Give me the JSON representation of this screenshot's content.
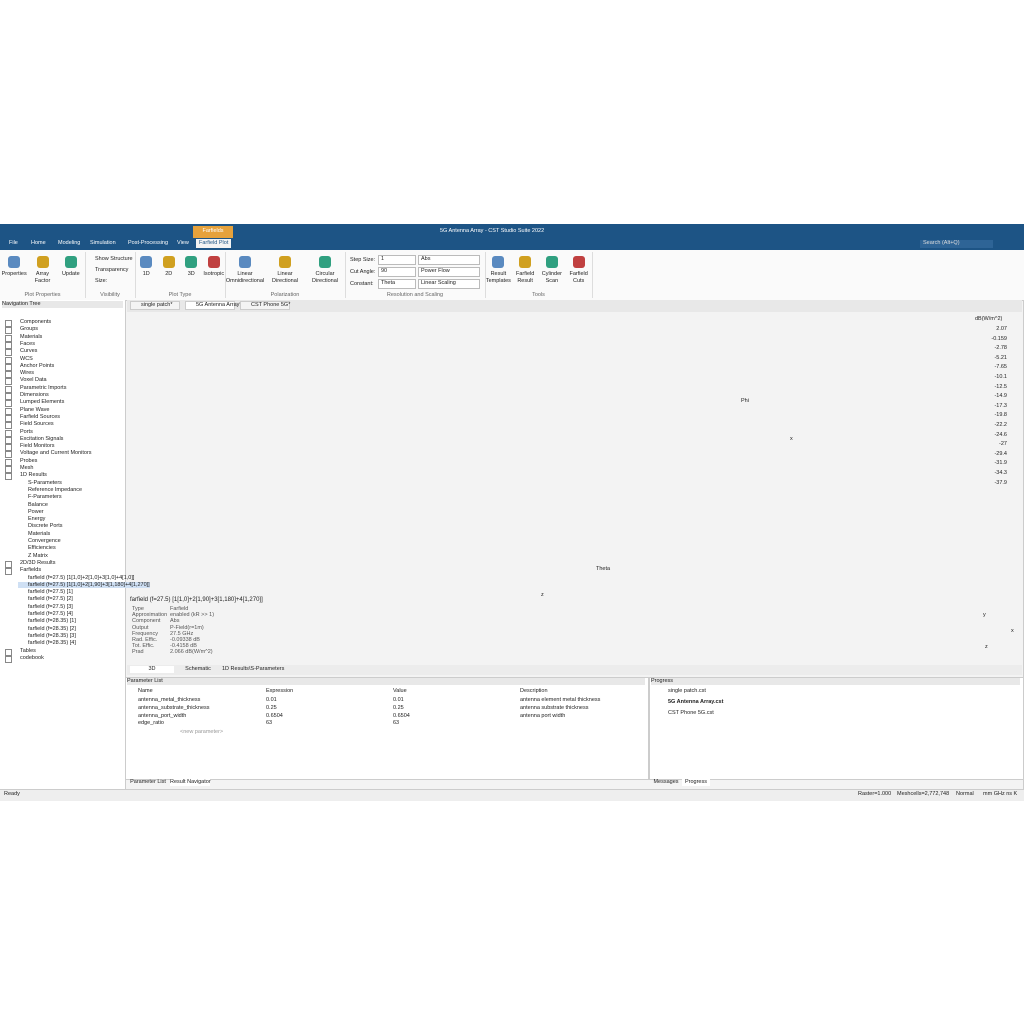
{
  "window": {
    "title": "5G Antenna Array - CST Studio Suite 2022",
    "context_tab": "Farfields",
    "search": "Search (Alt+Q)"
  },
  "menu": [
    "File",
    "Home",
    "Modeling",
    "Simulation",
    "Post-Processing",
    "View",
    "Farfield Plot"
  ],
  "ribbon": {
    "groups": [
      {
        "label": "Plot Properties",
        "buttons": [
          "Properties",
          "Array Factor",
          "Update"
        ]
      },
      {
        "label": "Visibility",
        "buttons": [
          "Show Structure",
          "Transparency",
          "Size:"
        ]
      },
      {
        "label": "Plot Type",
        "buttons": [
          "1D",
          "2D",
          "3D",
          "Isotropic"
        ]
      },
      {
        "label": "Polarization",
        "buttons": [
          "Linear Omnidirectional",
          "Linear Directional",
          "Circular Directional"
        ]
      },
      {
        "label": "Resolution and Scaling",
        "fields": [
          {
            "label": "Step Size:",
            "value": "1"
          },
          {
            "label": "Cut Angle:",
            "value": "90"
          },
          {
            "label": "Constant:",
            "value": "Theta"
          }
        ],
        "options": [
          "Abs",
          "Power Flow",
          "Linear Scaling"
        ]
      },
      {
        "label": "Tools",
        "buttons": [
          "Result Templates",
          "Farfield Result",
          "Cylinder Scan",
          "Farfield Cuts"
        ]
      }
    ]
  },
  "doc_tabs": [
    "single patch*",
    "5G Antenna Array*",
    "CST Phone 5G*"
  ],
  "navigation": {
    "title": "Navigation Tree",
    "items": [
      {
        "label": "Components"
      },
      {
        "label": "Groups"
      },
      {
        "label": "Materials"
      },
      {
        "label": "Faces"
      },
      {
        "label": "Curves"
      },
      {
        "label": "WCS"
      },
      {
        "label": "Anchor Points"
      },
      {
        "label": "Wires"
      },
      {
        "label": "Voxel Data"
      },
      {
        "label": "Parametric Imports"
      },
      {
        "label": "Dimensions"
      },
      {
        "label": "Lumped Elements"
      },
      {
        "label": "Plane Wave"
      },
      {
        "label": "Farfield Sources"
      },
      {
        "label": "Field Sources"
      },
      {
        "label": "Ports"
      },
      {
        "label": "Excitation Signals"
      },
      {
        "label": "Field Monitors"
      },
      {
        "label": "Voltage and Current Monitors"
      },
      {
        "label": "Probes"
      },
      {
        "label": "Mesh"
      },
      {
        "label": "1D Results",
        "children": [
          "S-Parameters",
          "Reference Impedance",
          "F-Parameters",
          "Balance",
          "Power",
          "Energy",
          "Discrete Ports",
          "Materials",
          "Convergence",
          "Efficiencies",
          "Z Matrix"
        ]
      },
      {
        "label": "2D/3D Results"
      },
      {
        "label": "Farfields",
        "children": [
          "farfield (f=27.5) [1[1,0]+2[1,0]+3[1,0]+4[1,0]]",
          "farfield (f=27.5) [1[1,0]+2[1,90]+3[1,180]+4[1,270]]",
          "farfield (f=27.5) [1]",
          "farfield (f=27.5) [2]",
          "farfield (f=27.5) [3]",
          "farfield (f=27.5) [4]",
          "farfield (f=28.35) [1]",
          "farfield (f=28.35) [2]",
          "farfield (f=28.35) [3]",
          "farfield (f=28.35) [4]"
        ]
      },
      {
        "label": "Tables"
      },
      {
        "label": "codebook"
      }
    ]
  },
  "view": {
    "colorbar": {
      "unit": "dB(W/m^2)",
      "labels": [
        "2.07",
        "-0.159",
        "-2.78",
        "-5.21",
        "-7.65",
        "-10.1",
        "-12.5",
        "-14.9",
        "-17.3",
        "-19.8",
        "-22.2",
        "-24.6",
        "-27",
        "-29.4",
        "-31.9",
        "-34.3",
        "-37.9"
      ]
    },
    "axis_labels": {
      "x": "x",
      "phi": "Phi",
      "theta": "Theta",
      "z": "z"
    },
    "triad": [
      "y",
      "x",
      "z"
    ],
    "info": {
      "title": "farfield (f=27.5) [1[1,0]+2[1,90]+3[1,180]+4[1,270]]",
      "rows": [
        [
          "Type",
          "Farfield"
        ],
        [
          "Approximation",
          "enabled (kR >> 1)"
        ],
        [
          "Component",
          "Abs"
        ],
        [
          "Output",
          "P-Field(r=1m)"
        ],
        [
          "Frequency",
          "27.5 GHz"
        ],
        [
          "Rad. Effic.",
          "-0.09338 dB"
        ],
        [
          "Tot. Effic.",
          "-0.4158 dB"
        ],
        [
          "Prad",
          "2.066 dB(W/m^2)"
        ]
      ]
    },
    "bottom_tabs": [
      "3D",
      "Schematic",
      "1D Results\\S-Parameters"
    ]
  },
  "parameters": {
    "title": "Parameter List",
    "columns": [
      "Name",
      "Expression",
      "Value",
      "Description"
    ],
    "rows": [
      [
        "antenna_metal_thickness",
        "0.01",
        "0.01",
        "antenna element metal thickness"
      ],
      [
        "antenna_substrate_thickness",
        "0.25",
        "0.25",
        "antenna substrate thickness"
      ],
      [
        "antenna_port_width",
        "0.6504",
        "0.6504",
        "antenna port width"
      ],
      [
        "edge_ratio",
        "63",
        "63"
      ]
    ],
    "new_row": "<new parameter>",
    "tabs": [
      "Parameter List",
      "Result Navigator"
    ]
  },
  "progress": {
    "title": "Progress",
    "files": [
      "single patch.cst",
      "5G Antenna Array.cst",
      "CST Phone 5G.cst"
    ],
    "tabs": [
      "Messages",
      "Progress"
    ]
  },
  "status": {
    "ready": "Ready",
    "raster": "Raster=1.000",
    "meshcells": "Meshcells=2,772,748",
    "mode": "Normal",
    "units": "mm GHz ns K"
  }
}
